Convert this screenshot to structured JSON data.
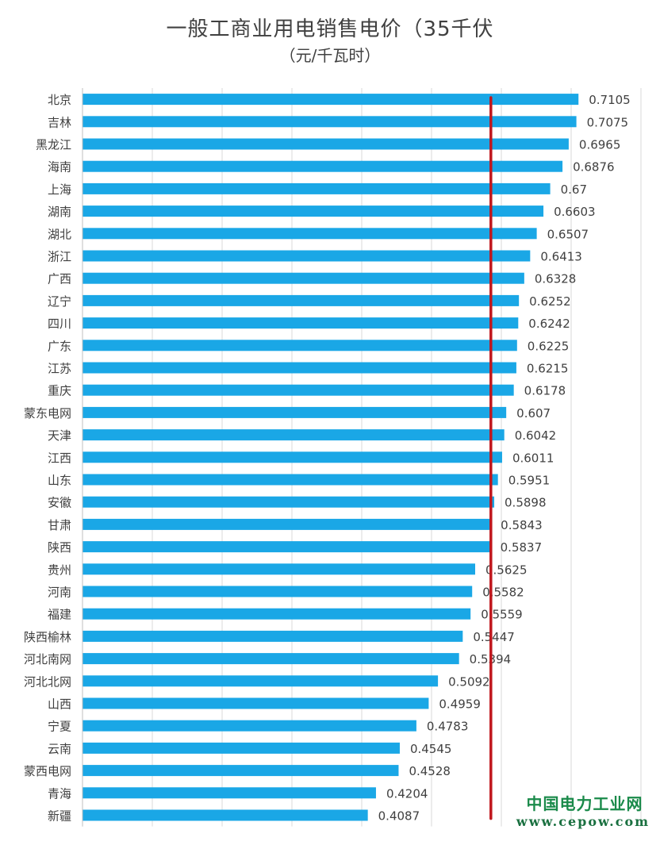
{
  "chart_data": {
    "type": "bar",
    "orientation": "horizontal",
    "title": "一般工商业用电销售电价（35千伏",
    "subtitle": "（元/千瓦时）",
    "categories": [
      "北京",
      "吉林",
      "黑龙江",
      "海南",
      "上海",
      "湖南",
      "湖北",
      "浙江",
      "广西",
      "辽宁",
      "四川",
      "广东",
      "江苏",
      "重庆",
      "蒙东电网",
      "天津",
      "江西",
      "山东",
      "安徽",
      "甘肃",
      "陕西",
      "贵州",
      "河南",
      "福建",
      "陕西榆林",
      "河北南网",
      "河北北网",
      "山西",
      "宁夏",
      "云南",
      "蒙西电网",
      "青海",
      "新疆"
    ],
    "values": [
      0.7105,
      0.7075,
      0.6965,
      0.6876,
      0.67,
      0.6603,
      0.6507,
      0.6413,
      0.6328,
      0.6252,
      0.6242,
      0.6225,
      0.6215,
      0.6178,
      0.607,
      0.6042,
      0.6011,
      0.5951,
      0.5898,
      0.5843,
      0.5837,
      0.5625,
      0.5582,
      0.5559,
      0.5447,
      0.5394,
      0.5092,
      0.4959,
      0.4783,
      0.4545,
      0.4528,
      0.4204,
      0.4087
    ],
    "value_labels": [
      "0.7105",
      "0.7075",
      "0.6965",
      "0.6876",
      "0.67",
      "0.6603",
      "0.6507",
      "0.6413",
      "0.6328",
      "0.6252",
      "0.6242",
      "0.6225",
      "0.6215",
      "0.6178",
      "0.607",
      "0.6042",
      "0.6011",
      "0.5951",
      "0.5898",
      "0.5843",
      "0.5837",
      "0.5625",
      "0.5582",
      "0.5559",
      "0.5447",
      "0.5394",
      "0.5092",
      "0.4959",
      "0.4783",
      "0.4545",
      "0.4528",
      "0.4204",
      "0.4087"
    ],
    "xlim": [
      0,
      0.8
    ],
    "grid": true,
    "bar_color": "#1aa7e6",
    "reference_line": {
      "value": 0.585,
      "color": "#c0171d"
    },
    "legend": "none"
  },
  "watermark": {
    "name": "中国电力工业网",
    "url": "www.cepow.com",
    "color": "#1a8a4a"
  }
}
